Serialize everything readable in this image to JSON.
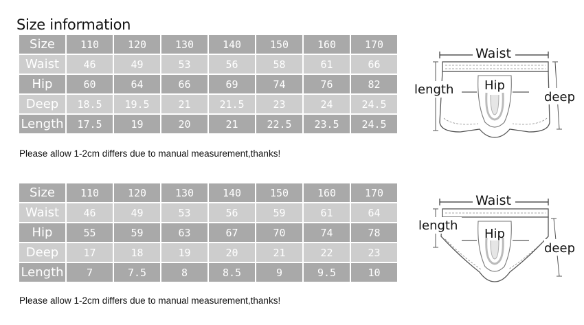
{
  "title": "Size information",
  "tables": [
    {
      "rows": [
        {
          "label": "Size",
          "values": [
            "110",
            "120",
            "130",
            "140",
            "150",
            "160",
            "170"
          ]
        },
        {
          "label": "Waist",
          "values": [
            "46",
            "49",
            "53",
            "56",
            "58",
            "61",
            "66"
          ]
        },
        {
          "label": "Hip",
          "values": [
            "60",
            "64",
            "66",
            "69",
            "74",
            "76",
            "82"
          ]
        },
        {
          "label": "Deep",
          "values": [
            "18.5",
            "19.5",
            "21",
            "21.5",
            "23",
            "24",
            "24.5"
          ]
        },
        {
          "label": "Length",
          "values": [
            "17.5",
            "19",
            "20",
            "21",
            "22.5",
            "23.5",
            "24.5"
          ]
        }
      ],
      "note": "Please allow 1-2cm differs due to manual measurement,thanks!",
      "diagram": {
        "waist": "Waist",
        "length": "length",
        "hip": "Hip",
        "deep": "deep"
      }
    },
    {
      "rows": [
        {
          "label": "Size",
          "values": [
            "110",
            "120",
            "130",
            "140",
            "150",
            "160",
            "170"
          ]
        },
        {
          "label": "Waist",
          "values": [
            "46",
            "49",
            "53",
            "56",
            "59",
            "61",
            "64"
          ]
        },
        {
          "label": "Hip",
          "values": [
            "55",
            "59",
            "63",
            "67",
            "70",
            "74",
            "78"
          ]
        },
        {
          "label": "Deep",
          "values": [
            "17",
            "18",
            "19",
            "20",
            "21",
            "22",
            "23"
          ]
        },
        {
          "label": "Length",
          "values": [
            "7",
            "7.5",
            "8",
            "8.5",
            "9",
            "9.5",
            "10"
          ]
        }
      ],
      "note": "Please allow 1-2cm differs due to manual measurement,thanks!",
      "diagram": {
        "waist": "Waist",
        "length": "length",
        "hip": "Hip",
        "deep": "deep"
      }
    }
  ],
  "colors": {
    "row_dark": "#a9a9a9",
    "row_light": "#cdcdcd",
    "text_on_cells": "#ffffff"
  },
  "icons": {
    "diagram_1": "boxer-brief-diagram-icon",
    "diagram_2": "brief-diagram-icon"
  }
}
